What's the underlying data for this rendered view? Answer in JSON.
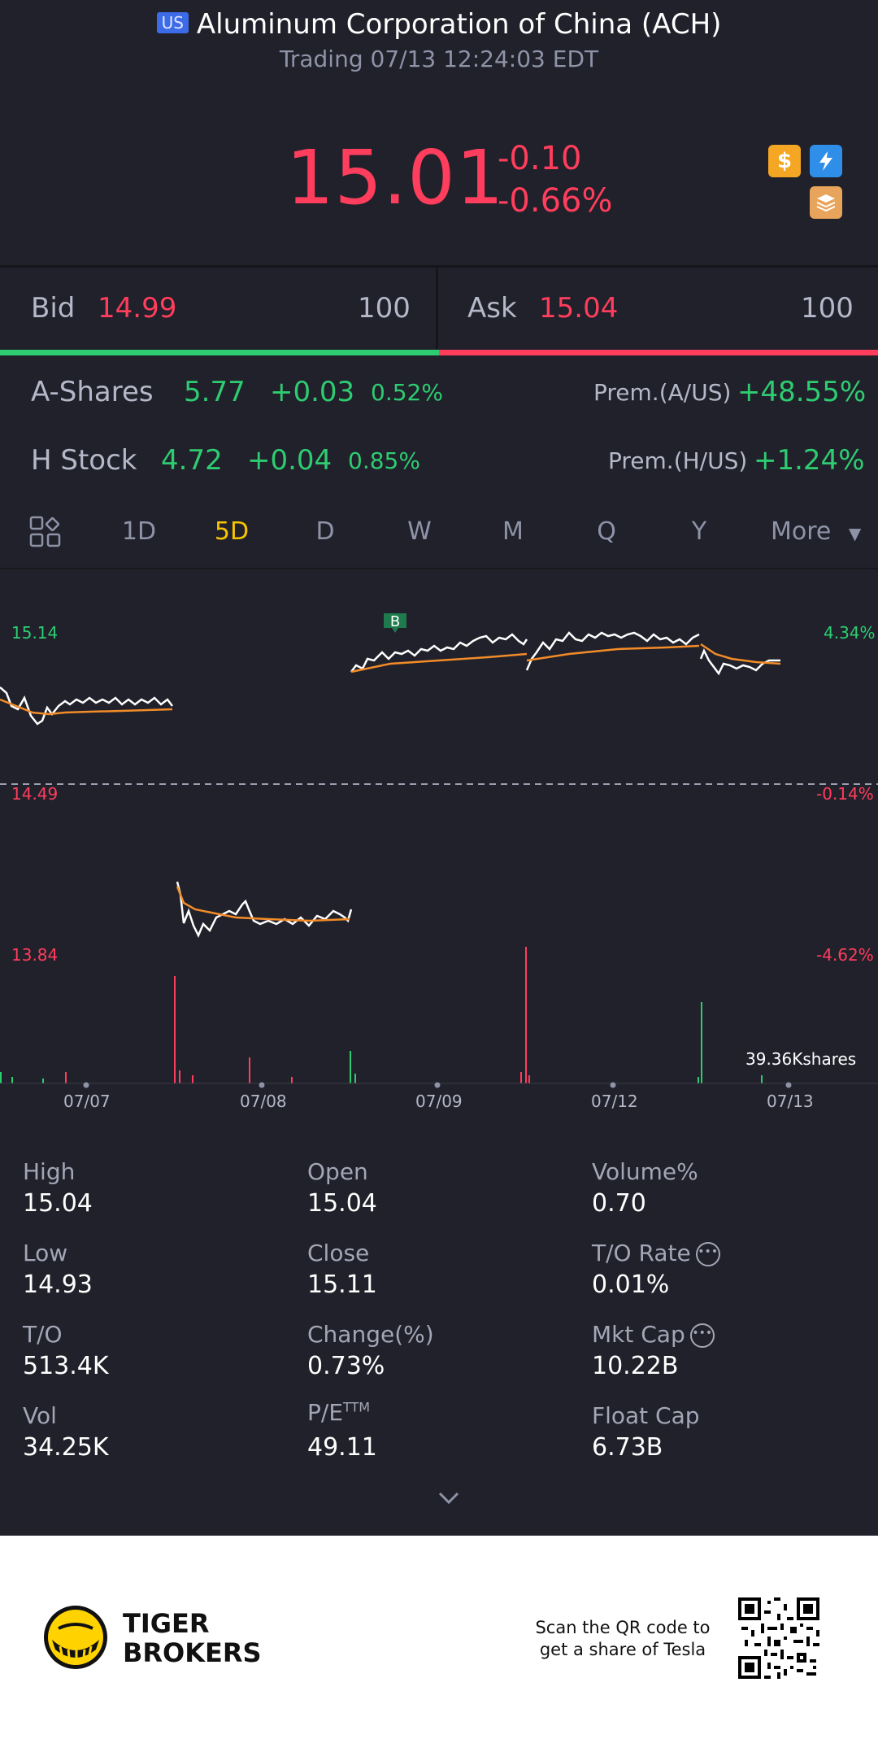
{
  "header": {
    "market_badge": "US",
    "title": "Aluminum Corporation of China (ACH)",
    "status": "Trading 07/13 12:24:03 EDT"
  },
  "quote": {
    "price": "15.01",
    "change": "-0.10",
    "change_pct": "-0.66%",
    "icons": [
      "dollar-icon",
      "flash-icon",
      "layers-icon"
    ]
  },
  "bid_ask": {
    "bid_label": "Bid",
    "bid_price": "14.99",
    "bid_size": "100",
    "ask_label": "Ask",
    "ask_price": "15.04",
    "ask_size": "100",
    "bid_fraction": 0.5
  },
  "related": {
    "a_shares": {
      "label": "A-Shares",
      "price": "5.77",
      "change": "+0.03",
      "pct": "0.52%",
      "prem_label": "Prem.(A/US)",
      "prem": "+48.55%"
    },
    "h_stock": {
      "label": "H Stock",
      "price": "4.72",
      "change": "+0.04",
      "pct": "0.85%",
      "prem_label": "Prem.(H/US)",
      "prem": "+1.24%"
    }
  },
  "tabs": {
    "items": [
      "1D",
      "5D",
      "D",
      "W",
      "M",
      "Q",
      "Y"
    ],
    "more": "More",
    "active": "5D"
  },
  "chart": {
    "y_left": [
      "15.14",
      "14.49",
      "13.84"
    ],
    "y_right": [
      "4.34%",
      "-0.14%",
      "-4.62%"
    ],
    "dates": [
      "07/07",
      "07/08",
      "07/09",
      "07/12",
      "07/13"
    ],
    "marker": "B",
    "volume_label": "39.36Kshares"
  },
  "chart_data": {
    "type": "line",
    "x": [
      "07/07",
      "07/08",
      "07/09",
      "07/12",
      "07/13"
    ],
    "ylim": [
      13.84,
      15.14
    ],
    "reference_price": 14.49,
    "series": []
  },
  "stats": [
    [
      {
        "label": "High",
        "value": "15.04"
      },
      {
        "label": "Open",
        "value": "15.04"
      },
      {
        "label": "Volume%",
        "value": "0.70"
      }
    ],
    [
      {
        "label": "Low",
        "value": "14.93"
      },
      {
        "label": "Close",
        "value": "15.11"
      },
      {
        "label": "T/O Rate",
        "value": "0.01%"
      }
    ],
    [
      {
        "label": "T/O",
        "value": "513.4K"
      },
      {
        "label": "Change(%)",
        "value": "0.73%"
      },
      {
        "label": "Mkt Cap",
        "value": "10.22B"
      }
    ],
    [
      {
        "label": "Vol",
        "value": "34.25K"
      },
      {
        "label": "P/E",
        "value": "49.11"
      },
      {
        "label": "Float Cap",
        "value": "6.73B"
      }
    ]
  ],
  "pe_sup": "TTM",
  "footer": {
    "brand_line1": "TIGER",
    "brand_line2": "BROKERS",
    "scan_line1": "Scan the QR code to",
    "scan_line2": "get a share of Tesla"
  },
  "colors": {
    "up": "#2ecc71",
    "down": "#ff3d5c",
    "accent": "#f5c400",
    "bg": "#21212b"
  }
}
